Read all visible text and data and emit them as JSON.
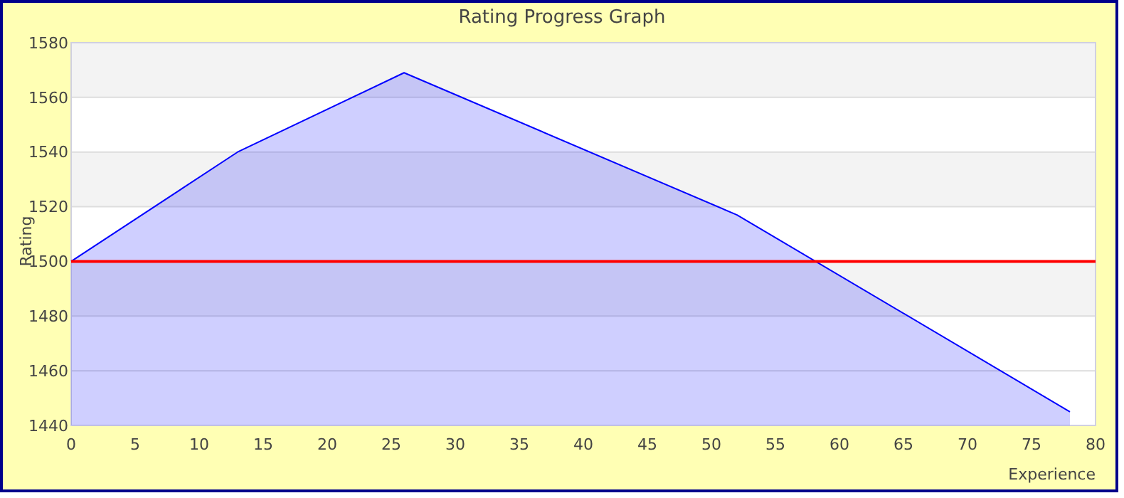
{
  "chart_data": {
    "type": "area",
    "title": "Rating Progress Graph",
    "xlabel": "Experience",
    "ylabel": "Rating",
    "x": [
      0,
      13,
      26,
      52,
      78
    ],
    "series": [
      {
        "color": "#0000ff",
        "values": [
          1500,
          1540,
          1569,
          1517,
          1445
        ]
      }
    ],
    "xlim": [
      0,
      80
    ],
    "xticks": [
      0,
      5,
      10,
      15,
      20,
      25,
      30,
      35,
      40,
      45,
      50,
      55,
      60,
      65,
      70,
      75,
      80
    ],
    "ylim": [
      1440,
      1580
    ],
    "yticks": [
      1440,
      1460,
      1480,
      1500,
      1520,
      1540,
      1560,
      1580
    ],
    "grid": "y",
    "ref_lines": [
      {
        "axis": "y",
        "value": 1500,
        "color": "#ff0000"
      }
    ]
  }
}
